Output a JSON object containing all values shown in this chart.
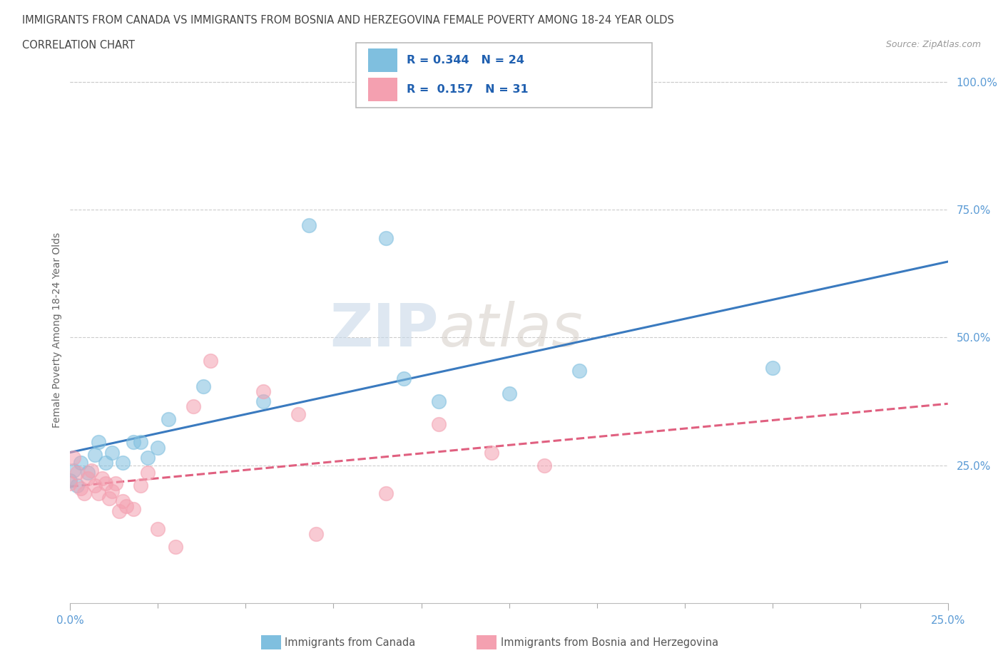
{
  "title_line1": "IMMIGRANTS FROM CANADA VS IMMIGRANTS FROM BOSNIA AND HERZEGOVINA FEMALE POVERTY AMONG 18-24 YEAR OLDS",
  "title_line2": "CORRELATION CHART",
  "source": "Source: ZipAtlas.com",
  "ylabel": "Female Poverty Among 18-24 Year Olds",
  "xlim": [
    0.0,
    0.25
  ],
  "ylim": [
    -0.02,
    1.05
  ],
  "ytick_values": [
    0.25,
    0.5,
    0.75,
    1.0
  ],
  "ytick_labels": [
    "25.0%",
    "50.0%",
    "75.0%",
    "100.0%"
  ],
  "canada_color": "#7fbfdf",
  "bosnia_color": "#f4a0b0",
  "canada_R": 0.344,
  "canada_N": 24,
  "bosnia_R": 0.157,
  "bosnia_N": 31,
  "watermark_zip": "ZIP",
  "watermark_atlas": "atlas",
  "legend_label_canada": "Immigrants from Canada",
  "legend_label_bosnia": "Immigrants from Bosnia and Herzegovina",
  "canada_x": [
    0.0,
    0.001,
    0.002,
    0.003,
    0.005,
    0.007,
    0.008,
    0.01,
    0.012,
    0.015,
    0.018,
    0.02,
    0.022,
    0.025,
    0.028,
    0.038,
    0.055,
    0.068,
    0.09,
    0.095,
    0.105,
    0.125,
    0.145,
    0.2
  ],
  "canada_y": [
    0.22,
    0.24,
    0.21,
    0.255,
    0.235,
    0.27,
    0.295,
    0.255,
    0.275,
    0.255,
    0.295,
    0.295,
    0.265,
    0.285,
    0.34,
    0.405,
    0.375,
    0.72,
    0.695,
    0.42,
    0.375,
    0.39,
    0.435,
    0.44
  ],
  "bosnia_x": [
    0.0,
    0.001,
    0.002,
    0.003,
    0.004,
    0.005,
    0.006,
    0.007,
    0.008,
    0.009,
    0.01,
    0.011,
    0.012,
    0.013,
    0.014,
    0.015,
    0.016,
    0.018,
    0.02,
    0.022,
    0.025,
    0.03,
    0.035,
    0.04,
    0.055,
    0.065,
    0.07,
    0.09,
    0.105,
    0.12,
    0.135
  ],
  "bosnia_y": [
    0.215,
    0.265,
    0.235,
    0.205,
    0.195,
    0.225,
    0.24,
    0.21,
    0.195,
    0.225,
    0.215,
    0.185,
    0.2,
    0.215,
    0.16,
    0.18,
    0.17,
    0.165,
    0.21,
    0.235,
    0.125,
    0.09,
    0.365,
    0.455,
    0.395,
    0.35,
    0.115,
    0.195,
    0.33,
    0.275,
    0.25
  ]
}
